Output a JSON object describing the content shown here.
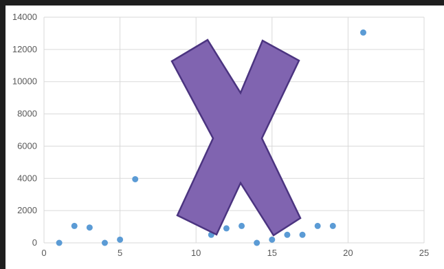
{
  "chart_data": {
    "type": "scatter",
    "title": "",
    "xlabel": "",
    "ylabel": "",
    "xlim": [
      0,
      25
    ],
    "ylim": [
      0,
      14000
    ],
    "x_ticks": [
      0,
      5,
      10,
      15,
      20,
      25
    ],
    "y_ticks": [
      0,
      2000,
      4000,
      6000,
      8000,
      10000,
      12000,
      14000
    ],
    "grid": true,
    "legend": "none",
    "series": [
      {
        "color": "#5b9bd5",
        "points": [
          {
            "x": 1,
            "y": 0
          },
          {
            "x": 2,
            "y": 1050
          },
          {
            "x": 3,
            "y": 950
          },
          {
            "x": 4,
            "y": 0
          },
          {
            "x": 5,
            "y": 200
          },
          {
            "x": 6,
            "y": 3950
          },
          {
            "x": 11,
            "y": 500
          },
          {
            "x": 12,
            "y": 900
          },
          {
            "x": 13,
            "y": 1050
          },
          {
            "x": 14,
            "y": 0
          },
          {
            "x": 15,
            "y": 200
          },
          {
            "x": 16,
            "y": 500
          },
          {
            "x": 17,
            "y": 500
          },
          {
            "x": 18,
            "y": 1050
          },
          {
            "x": 19,
            "y": 1050
          },
          {
            "x": 21,
            "y": 13050
          }
        ]
      }
    ],
    "overlay": {
      "shape": "x-mark",
      "fill": "#8064b0",
      "stroke": "#4b3480"
    }
  }
}
